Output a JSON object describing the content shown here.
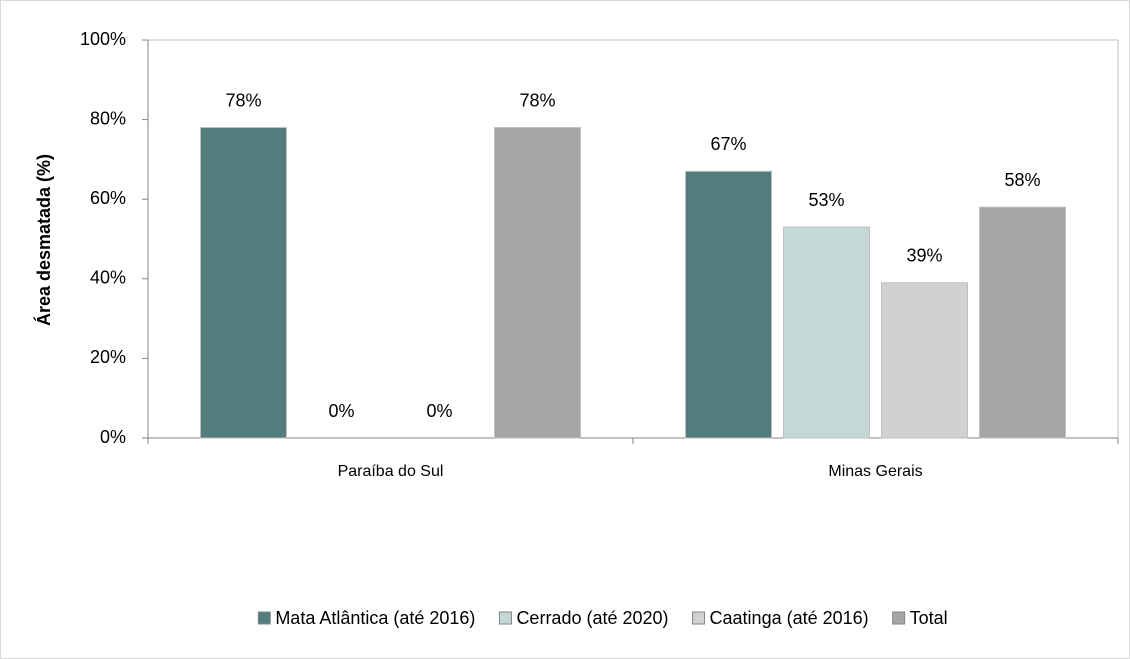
{
  "chart_data": {
    "type": "bar",
    "y_label": "Área desmatada (%)",
    "categories": [
      "Paraíba do Sul",
      "Minas Gerais"
    ],
    "series": [
      {
        "name": "Mata Atlântica (até 2016)",
        "color": "#527d7c",
        "values": [
          78,
          67
        ],
        "value_labels": [
          "78%",
          "67%"
        ]
      },
      {
        "name": "Cerrado (até 2020)",
        "color": "#c3d8d7",
        "values": [
          0,
          53
        ],
        "value_labels": [
          "0%",
          "53%"
        ]
      },
      {
        "name": "Caatinga (até 2016)",
        "color": "#d2d0d1",
        "values": [
          0,
          39
        ],
        "value_labels": [
          "0%",
          "39%"
        ]
      },
      {
        "name": "Total",
        "color": "#a6a6a6",
        "values": [
          78,
          58
        ],
        "value_labels": [
          "78%",
          "58%"
        ]
      }
    ],
    "ylim": [
      0,
      100
    ],
    "yticks": [
      {
        "value": 0,
        "label": "0%"
      },
      {
        "value": 20,
        "label": "20%"
      },
      {
        "value": 40,
        "label": "40%"
      },
      {
        "value": 60,
        "label": "60%"
      },
      {
        "value": 80,
        "label": "80%"
      },
      {
        "value": 100,
        "label": "100%"
      }
    ],
    "legend": "bottom"
  }
}
